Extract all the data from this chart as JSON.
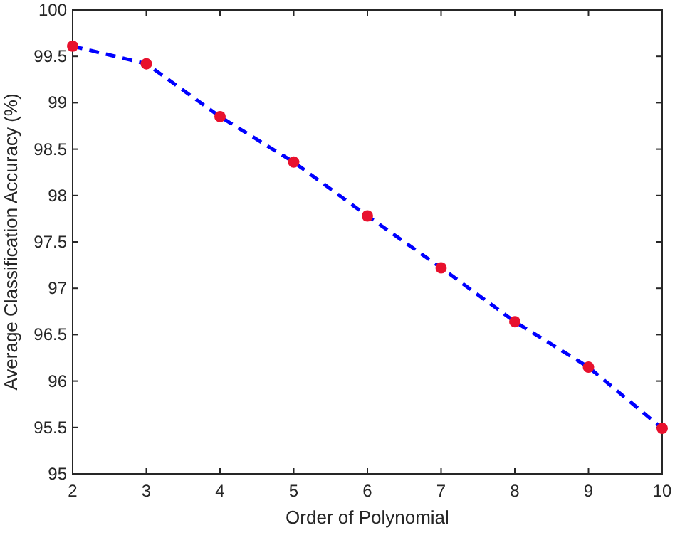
{
  "chart_data": {
    "type": "line",
    "xlabel": "Order of Polynomial",
    "ylabel": "Average Classification Accuracy (%)",
    "x": [
      2,
      3,
      4,
      5,
      6,
      7,
      8,
      9,
      10
    ],
    "series": [
      {
        "color": "#0000ff",
        "line_style": "dashed",
        "marker": "none",
        "values": [
          99.61,
          99.42,
          98.85,
          98.36,
          97.78,
          97.22,
          96.64,
          96.15,
          95.49
        ]
      },
      {
        "type": "scatter",
        "color": "#e8112d",
        "marker": "circle",
        "values": [
          99.61,
          99.42,
          98.85,
          98.36,
          97.78,
          97.22,
          96.64,
          96.15,
          95.49
        ]
      }
    ],
    "xlim": [
      2,
      10
    ],
    "xticks": [
      2,
      3,
      4,
      5,
      6,
      7,
      8,
      9,
      10
    ],
    "ylim": [
      95,
      100
    ],
    "yticks": [
      95,
      95.5,
      96,
      96.5,
      97,
      97.5,
      98,
      98.5,
      99,
      99.5,
      100
    ],
    "grid": false
  }
}
